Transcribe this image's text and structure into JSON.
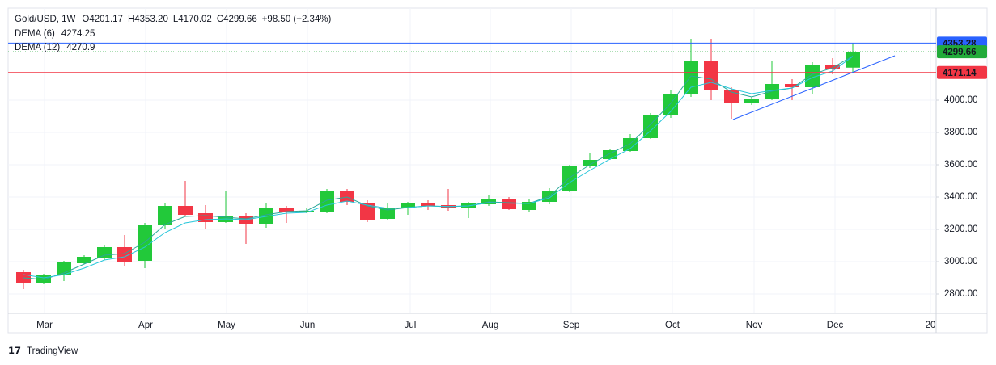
{
  "chart_data": {
    "type": "candlestick",
    "title": "Gold/USD, 1W",
    "ohlc_labels": [
      "O",
      "H",
      "L",
      "C"
    ],
    "change": "+98.50 (+2.34%)",
    "categories": [
      null,
      null,
      null,
      null,
      null,
      null,
      null,
      null,
      null,
      null,
      null,
      null,
      null,
      null,
      null,
      null,
      null,
      null,
      null,
      null,
      null,
      null,
      null,
      null,
      null,
      null,
      null,
      null,
      null,
      null,
      null,
      null,
      null,
      null,
      null,
      null,
      null,
      null,
      null,
      null,
      null,
      null
    ],
    "open": [
      2935,
      2870,
      2915,
      2990,
      3020,
      3090,
      3005,
      3225,
      3345,
      3300,
      3245,
      3285,
      3235,
      3335,
      3305,
      3310,
      3440,
      3365,
      3265,
      3330,
      3365,
      3350,
      3330,
      3355,
      3390,
      3320,
      3370,
      3440,
      3590,
      3635,
      3685,
      3765,
      3910,
      4035,
      4240,
      4065,
      3980,
      4010,
      4100,
      4080,
      4220,
      4201.17
    ],
    "high": [
      2950,
      2925,
      3005,
      3040,
      3100,
      3165,
      3240,
      3360,
      3500,
      3350,
      3435,
      3300,
      3365,
      3345,
      3330,
      3450,
      3450,
      3380,
      3360,
      3370,
      3380,
      3450,
      3370,
      3410,
      3400,
      3385,
      3455,
      3600,
      3670,
      3700,
      3790,
      3920,
      4060,
      4380,
      4380,
      4080,
      4020,
      4240,
      4130,
      4235,
      4260,
      4353.2
    ],
    "low": [
      2830,
      2860,
      2880,
      2985,
      3010,
      2970,
      2960,
      3200,
      3280,
      3200,
      3240,
      3110,
      3210,
      3240,
      3300,
      3300,
      3350,
      3245,
      3260,
      3290,
      3320,
      3315,
      3270,
      3345,
      3320,
      3310,
      3355,
      3430,
      3580,
      3630,
      3680,
      3760,
      3890,
      4020,
      4000,
      3885,
      3970,
      4000,
      4000,
      4040,
      4160,
      4170.02
    ],
    "close": [
      2870,
      2915,
      2995,
      3030,
      3090,
      2995,
      3225,
      3345,
      3290,
      3245,
      3285,
      3235,
      3335,
      3310,
      3315,
      3440,
      3370,
      3260,
      3330,
      3365,
      3345,
      3330,
      3360,
      3390,
      3325,
      3370,
      3440,
      3590,
      3630,
      3690,
      3765,
      3910,
      4035,
      4240,
      4065,
      3980,
      4010,
      4100,
      4080,
      4220,
      4195,
      4299.66
    ],
    "up_color": "#22c93a",
    "down_color": "#f23645",
    "series": [
      {
        "name": "DEMA (6)",
        "color": "#2aa89a",
        "values": [
          2900,
          2890,
          2930,
          2985,
          3040,
          3050,
          3120,
          3230,
          3280,
          3285,
          3275,
          3265,
          3290,
          3310,
          3315,
          3380,
          3400,
          3345,
          3320,
          3335,
          3345,
          3340,
          3345,
          3370,
          3365,
          3360,
          3405,
          3520,
          3600,
          3670,
          3730,
          3850,
          3980,
          4150,
          4130,
          4050,
          4020,
          4055,
          4075,
          4160,
          4200,
          4274.25
        ]
      },
      {
        "name": "DEMA (12)",
        "color": "#26c6da",
        "values": [
          2920,
          2900,
          2920,
          2960,
          3010,
          3030,
          3090,
          3180,
          3240,
          3260,
          3265,
          3260,
          3280,
          3300,
          3305,
          3350,
          3375,
          3350,
          3330,
          3335,
          3345,
          3342,
          3345,
          3365,
          3362,
          3360,
          3395,
          3490,
          3565,
          3635,
          3700,
          3810,
          3930,
          4080,
          4110,
          4070,
          4040,
          4060,
          4075,
          4140,
          4180,
          4270.9
        ]
      }
    ],
    "price_lines": [
      {
        "value": 4353.28,
        "color": "#2962ff",
        "style": "solid"
      },
      {
        "value": 4299.66,
        "color": "#22ab3a",
        "style": "dotted"
      },
      {
        "value": 4171.14,
        "color": "#f23645",
        "style": "solid"
      }
    ],
    "ylim": [
      2680,
      4570
    ],
    "yticks": [
      {
        "value": 2800,
        "label": "2800.00"
      },
      {
        "value": 3000,
        "label": "3000.00"
      },
      {
        "value": 3200,
        "label": "3200.00"
      },
      {
        "value": 3400,
        "label": "3400.00"
      },
      {
        "value": 3600,
        "label": "3600.00"
      },
      {
        "value": 3800,
        "label": "3800.00"
      },
      {
        "value": 4000,
        "label": "4000.00"
      }
    ],
    "xlim": [
      -0.76,
      45.12
    ],
    "xticks": [
      {
        "value": 1.04,
        "label": "Mar"
      },
      {
        "value": 6.04,
        "label": "Apr"
      },
      {
        "value": 10.04,
        "label": "May"
      },
      {
        "value": 14.04,
        "label": "Jun"
      },
      {
        "value": 19.12,
        "label": "Jul"
      },
      {
        "value": 23.08,
        "label": "Aug"
      },
      {
        "value": 27.08,
        "label": "Sep"
      },
      {
        "value": 32.08,
        "label": "Oct"
      },
      {
        "value": 36.12,
        "label": "Nov"
      },
      {
        "value": 40.12,
        "label": "Dec"
      },
      {
        "value": 44.84,
        "label": "20"
      }
    ],
    "grid": true,
    "brand": "TradingView"
  }
}
